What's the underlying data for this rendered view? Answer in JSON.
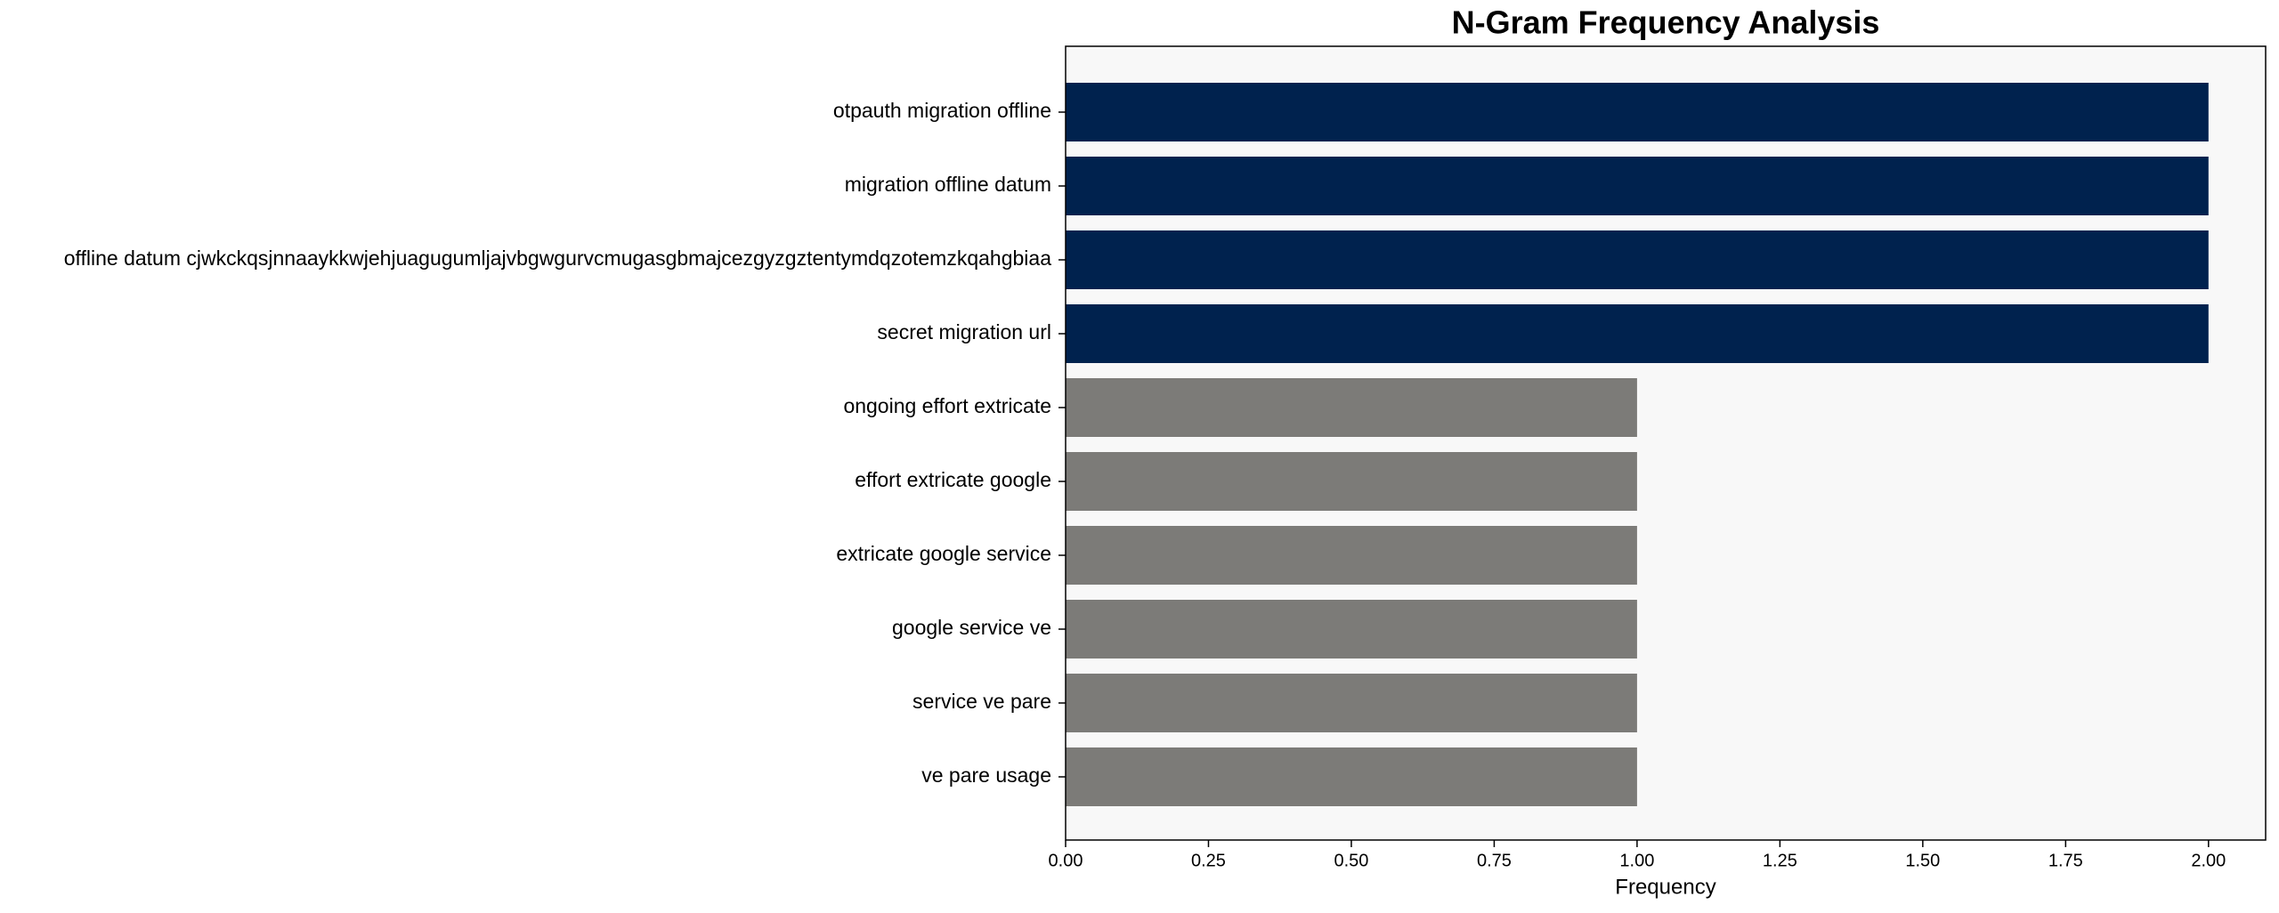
{
  "chart_data": {
    "type": "barh",
    "title": "N-Gram Frequency Analysis",
    "x_label": "Frequency",
    "categories": [
      "otpauth migration offline",
      "migration offline datum",
      "offline datum cjwkckqsjnnaaykkwjehjuagugumljajvbgwgurvcmugasgbmajcezgyzgztentymdqzotemzkqahgbiaa",
      "secret migration url",
      "ongoing effort extricate",
      "effort extricate google",
      "extricate google service",
      "google service ve",
      "service ve pare",
      "ve pare usage"
    ],
    "values": [
      2,
      2,
      2,
      2,
      1,
      1,
      1,
      1,
      1,
      1
    ],
    "colors": [
      "#00224e",
      "#00224e",
      "#00224e",
      "#00224e",
      "#7c7b78",
      "#7c7b78",
      "#7c7b78",
      "#7c7b78",
      "#7c7b78",
      "#7c7b78"
    ],
    "xlim": [
      0,
      2.1
    ],
    "xticks": [
      {
        "value": 0,
        "label": "0.00"
      },
      {
        "value": 0.25,
        "label": "0.25"
      },
      {
        "value": 0.5,
        "label": "0.50"
      },
      {
        "value": 0.75,
        "label": "0.75"
      },
      {
        "value": 1,
        "label": "1.00"
      },
      {
        "value": 1.25,
        "label": "1.25"
      },
      {
        "value": 1.5,
        "label": "1.50"
      },
      {
        "value": 1.75,
        "label": "1.75"
      },
      {
        "value": 2,
        "label": "2.00"
      }
    ],
    "plot_background": "#f8f8f8"
  }
}
